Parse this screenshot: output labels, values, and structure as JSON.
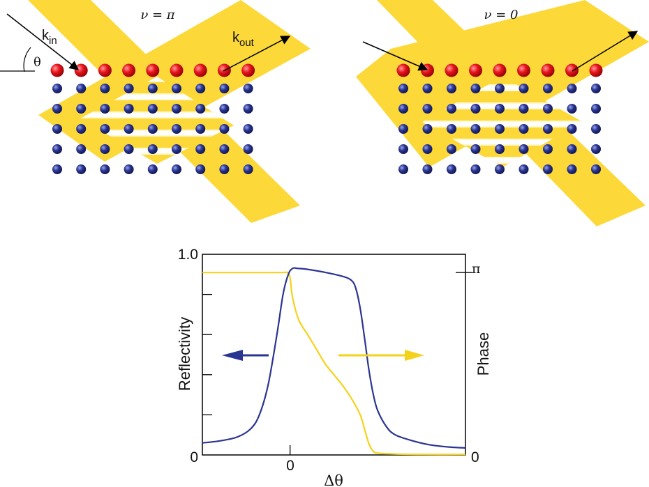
{
  "panels": [
    {
      "label": "ν = π",
      "k_in": "k",
      "k_in_sub": "in",
      "k_out": "k",
      "k_out_sub": "out",
      "angle": "θ"
    },
    {
      "label": "ν = 0"
    }
  ],
  "colors": {
    "beam": "#fcd838",
    "surface_atom": "#e8141c",
    "bulk_atom": "#2a3591",
    "reflectivity_curve": "#2a3591",
    "phase_curve": "#f5d21a"
  },
  "chart_data": {
    "type": "line",
    "xlabel": "Δθ",
    "ylabel_left": "Reflectivity",
    "ylabel_right": "Phase",
    "x_tick_labels": [
      "0"
    ],
    "y_left_tick_labels": [
      "0",
      "1.0"
    ],
    "y_right_tick_labels": [
      "0",
      "π"
    ],
    "x_range": [
      -1,
      2
    ],
    "y_left_range": [
      0,
      1.0
    ],
    "y_right_range": [
      0,
      1.1
    ],
    "series": [
      {
        "name": "Reflectivity",
        "axis": "left",
        "x": [
          -1.0,
          -0.8,
          -0.6,
          -0.45,
          -0.35,
          -0.25,
          -0.15,
          -0.08,
          -0.02,
          0.03,
          0.08,
          0.2,
          0.4,
          0.6,
          0.7,
          0.75,
          0.8,
          0.85,
          0.9,
          0.95,
          1.0,
          1.1,
          1.2,
          1.4,
          1.6,
          1.8,
          2.0
        ],
        "values": [
          0.06,
          0.07,
          0.09,
          0.13,
          0.2,
          0.35,
          0.6,
          0.8,
          0.9,
          0.93,
          0.93,
          0.925,
          0.91,
          0.89,
          0.87,
          0.83,
          0.73,
          0.58,
          0.42,
          0.3,
          0.22,
          0.14,
          0.1,
          0.07,
          0.05,
          0.04,
          0.035
        ]
      },
      {
        "name": "Phase",
        "axis": "right",
        "x": [
          -1.0,
          -0.5,
          -0.1,
          -0.03,
          0.0,
          0.03,
          0.1,
          0.2,
          0.3,
          0.4,
          0.5,
          0.6,
          0.7,
          0.8,
          0.85,
          0.9,
          0.95,
          1.0,
          1.2,
          1.5,
          2.0
        ],
        "values": [
          1.0,
          1.0,
          1.0,
          1.0,
          0.97,
          0.86,
          0.74,
          0.66,
          0.58,
          0.5,
          0.44,
          0.38,
          0.31,
          0.22,
          0.14,
          0.06,
          0.02,
          0.01,
          0.005,
          0.003,
          0.003
        ]
      }
    ]
  }
}
